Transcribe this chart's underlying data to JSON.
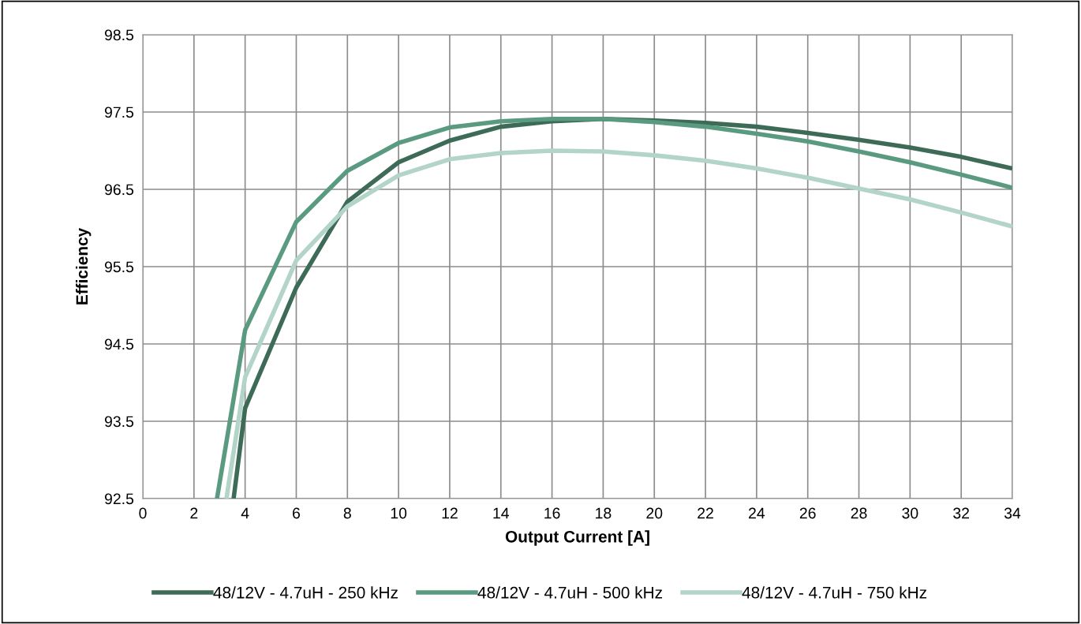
{
  "chart_data": {
    "type": "line",
    "xlabel": "Output Current [A]",
    "ylabel": "Efficiency",
    "xlim": [
      0,
      34
    ],
    "xticks": [
      0,
      2,
      4,
      6,
      8,
      10,
      12,
      14,
      16,
      18,
      20,
      22,
      24,
      26,
      28,
      30,
      32,
      34
    ],
    "ylim": [
      92.5,
      98.5
    ],
    "yticks": [
      {
        "value": 92.5,
        "label": "92.5"
      },
      {
        "value": 93.5,
        "label": "93.5"
      },
      {
        "value": 94.5,
        "label": "94.5"
      },
      {
        "value": 95.5,
        "label": "95.5"
      },
      {
        "value": 96.5,
        "label": "96.5"
      },
      {
        "value": 97.5,
        "label": "97.5"
      },
      {
        "value": 98.5,
        "label": "98.5"
      }
    ],
    "grid": true,
    "legend": "bottom",
    "marker": "none",
    "line_style": "solid",
    "series": [
      {
        "name": "48/12V - 4.7uH - 250 kHz",
        "color": "#3d6b57",
        "x": [
          3.55,
          4,
          6,
          8,
          10,
          12,
          14,
          16,
          18,
          20,
          22,
          24,
          26,
          28,
          30,
          32,
          34
        ],
        "values": [
          92.5,
          93.67,
          95.23,
          96.34,
          96.85,
          97.13,
          97.31,
          97.38,
          97.41,
          97.39,
          97.36,
          97.31,
          97.23,
          97.14,
          97.04,
          96.92,
          96.77
        ]
      },
      {
        "name": "48/12V - 4.7uH - 500 kHz",
        "color": "#5a9a80",
        "x": [
          2.9,
          4,
          6,
          8,
          10,
          12,
          14,
          16,
          18,
          20,
          22,
          24,
          26,
          28,
          30,
          32,
          34
        ],
        "values": [
          92.5,
          94.68,
          96.08,
          96.74,
          97.1,
          97.3,
          97.38,
          97.41,
          97.41,
          97.37,
          97.31,
          97.22,
          97.12,
          96.99,
          96.85,
          96.69,
          96.52
        ]
      },
      {
        "name": "48/12V - 4.7uH - 750 kHz",
        "color": "#b3d4c8",
        "x": [
          3.27,
          4,
          6,
          8,
          10,
          12,
          14,
          16,
          18,
          20,
          22,
          24,
          26,
          28,
          30,
          32,
          34
        ],
        "values": [
          92.5,
          94.07,
          95.58,
          96.28,
          96.68,
          96.89,
          96.97,
          97.0,
          96.99,
          96.94,
          96.87,
          96.77,
          96.65,
          96.51,
          96.37,
          96.2,
          96.02
        ]
      }
    ]
  }
}
